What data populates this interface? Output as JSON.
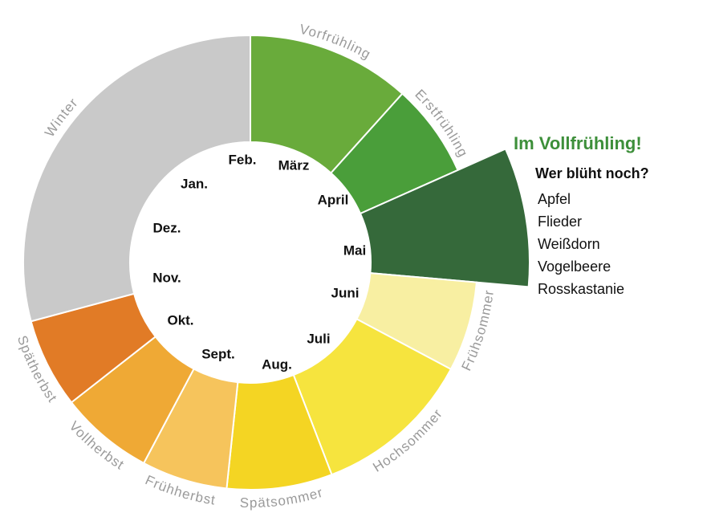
{
  "seasons": [
    {
      "label": "Vorfrühling",
      "color": "#69ab3b"
    },
    {
      "label": "Erstfrühling",
      "color": "#4a9e3a"
    },
    {
      "label": "",
      "color": "#35693a"
    },
    {
      "label": "Frühsommer",
      "color": "#f8efa2"
    },
    {
      "label": "Hochsommer",
      "color": "#f6e43e"
    },
    {
      "label": "Spätsommer",
      "color": "#f4d523"
    },
    {
      "label": "Frühherbst",
      "color": "#f6c45c"
    },
    {
      "label": "Vollherbst",
      "color": "#efa935"
    },
    {
      "label": "Spätherbst",
      "color": "#e17b26"
    },
    {
      "label": "Winter",
      "color": "#c9c9c9"
    }
  ],
  "months": [
    "Feb.",
    "März",
    "April",
    "Mai",
    "Juni",
    "Juli",
    "Aug.",
    "Sept.",
    "Okt.",
    "Nov.",
    "Dez.",
    "Jan."
  ],
  "panel": {
    "title": "Im Vollfrühling!",
    "subtitle": "Wer blüht noch?",
    "items": [
      "Apfel",
      "Flieder",
      "Weißdorn",
      "Vogelbeere",
      "Rosskastanie"
    ]
  }
}
